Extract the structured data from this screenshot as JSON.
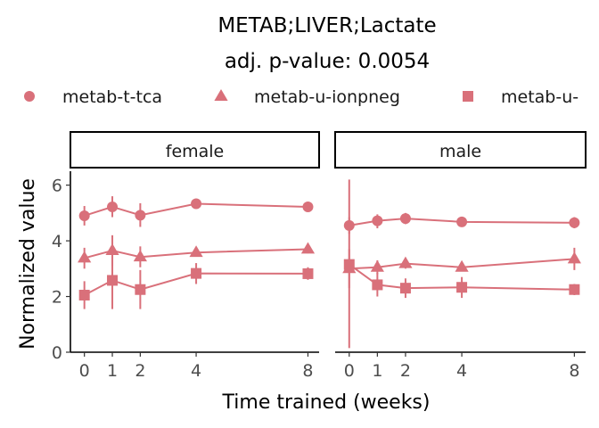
{
  "chart_data": {
    "type": "line",
    "title": "METAB;LIVER;Lactate",
    "subtitle": "adj. p-value: 0.0054",
    "xlabel": "Time trained (weeks)",
    "ylabel": "Normalized value",
    "xlim": [
      -0.5,
      8.4
    ],
    "ylim": [
      0,
      6.5
    ],
    "x_ticks": [
      0,
      1,
      2,
      4,
      8
    ],
    "y_ticks": [
      0,
      2,
      4,
      6
    ],
    "grid": false,
    "legend_position": "top",
    "color": "#D9707A",
    "legend": [
      {
        "label": "metab-t-tca",
        "shape": "circle"
      },
      {
        "label": "metab-u-ionpneg",
        "shape": "triangle"
      },
      {
        "label": "metab-u-",
        "shape": "square"
      }
    ],
    "panels": [
      {
        "label": "female",
        "series": [
          {
            "name": "metab-t-tca",
            "shape": "circle",
            "points": [
              {
                "x": 0,
                "y": 4.9,
                "lo": 4.55,
                "hi": 5.25
              },
              {
                "x": 1,
                "y": 5.22,
                "lo": 4.85,
                "hi": 5.6
              },
              {
                "x": 2,
                "y": 4.92,
                "lo": 4.5,
                "hi": 5.35
              },
              {
                "x": 4,
                "y": 5.33,
                "lo": 5.2,
                "hi": 5.45
              },
              {
                "x": 8,
                "y": 5.22,
                "lo": 5.1,
                "hi": 5.35
              }
            ]
          },
          {
            "name": "metab-u-ionpneg",
            "shape": "triangle",
            "points": [
              {
                "x": 0,
                "y": 3.38,
                "lo": 3.0,
                "hi": 3.75
              },
              {
                "x": 1,
                "y": 3.65,
                "lo": 3.1,
                "hi": 4.2
              },
              {
                "x": 2,
                "y": 3.42,
                "lo": 3.05,
                "hi": 3.8
              },
              {
                "x": 4,
                "y": 3.58,
                "lo": 3.45,
                "hi": 3.7
              },
              {
                "x": 8,
                "y": 3.7,
                "lo": 3.55,
                "hi": 3.85
              }
            ]
          },
          {
            "name": "metab-u-",
            "shape": "square",
            "points": [
              {
                "x": 0,
                "y": 2.05,
                "lo": 1.55,
                "hi": 2.55
              },
              {
                "x": 1,
                "y": 2.58,
                "lo": 1.55,
                "hi": 3.6
              },
              {
                "x": 2,
                "y": 2.25,
                "lo": 1.55,
                "hi": 2.95
              },
              {
                "x": 4,
                "y": 2.83,
                "lo": 2.45,
                "hi": 3.2
              },
              {
                "x": 8,
                "y": 2.82,
                "lo": 2.6,
                "hi": 3.05
              }
            ]
          }
        ]
      },
      {
        "label": "male",
        "series": [
          {
            "name": "metab-t-tca",
            "shape": "circle",
            "points": [
              {
                "x": 0,
                "y": 4.55,
                "lo": 4.25,
                "hi": 4.85
              },
              {
                "x": 1,
                "y": 4.72,
                "lo": 4.45,
                "hi": 4.95
              },
              {
                "x": 2,
                "y": 4.8,
                "lo": 4.6,
                "hi": 5.0
              },
              {
                "x": 4,
                "y": 4.68,
                "lo": 4.5,
                "hi": 4.85
              },
              {
                "x": 8,
                "y": 4.65,
                "lo": 4.45,
                "hi": 4.85
              }
            ]
          },
          {
            "name": "metab-u-ionpneg",
            "shape": "triangle",
            "points": [
              {
                "x": 0,
                "y": 3.0,
                "lo": 2.3,
                "hi": 3.7
              },
              {
                "x": 1,
                "y": 3.05,
                "lo": 2.8,
                "hi": 3.3
              },
              {
                "x": 2,
                "y": 3.18,
                "lo": 3.0,
                "hi": 3.35
              },
              {
                "x": 4,
                "y": 3.05,
                "lo": 2.9,
                "hi": 3.2
              },
              {
                "x": 8,
                "y": 3.35,
                "lo": 2.95,
                "hi": 3.75
              }
            ]
          },
          {
            "name": "metab-u-",
            "shape": "square",
            "points": [
              {
                "x": 0,
                "y": 3.15,
                "lo": 0.15,
                "hi": 6.2
              },
              {
                "x": 1,
                "y": 2.42,
                "lo": 2.0,
                "hi": 2.85
              },
              {
                "x": 2,
                "y": 2.3,
                "lo": 1.95,
                "hi": 2.65
              },
              {
                "x": 4,
                "y": 2.33,
                "lo": 1.95,
                "hi": 2.7
              },
              {
                "x": 8,
                "y": 2.25,
                "lo": 2.05,
                "hi": 2.45
              }
            ]
          }
        ]
      }
    ]
  }
}
